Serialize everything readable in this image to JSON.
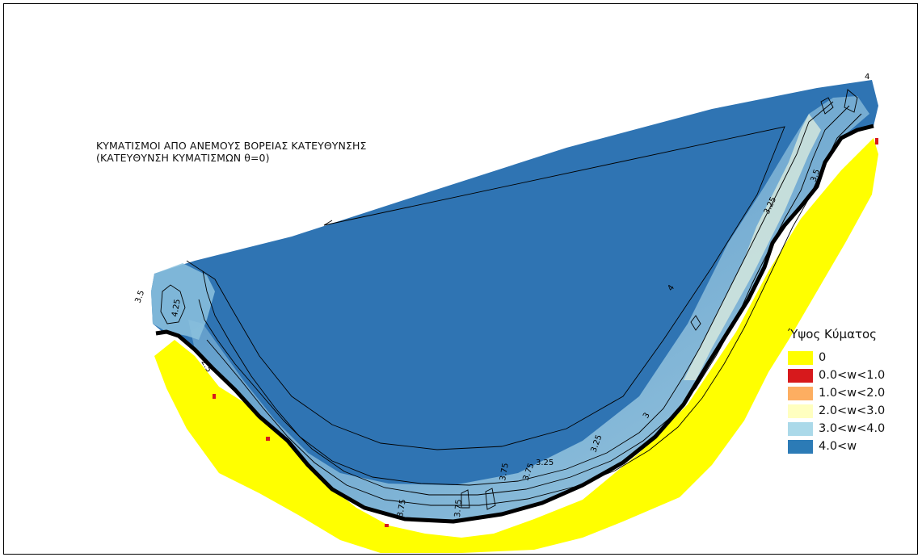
{
  "map": {
    "title_line1": "ΚΥΜΑΤΙΣΜΟΙ ΑΠΟ ΑΝΕΜΟΥΣ ΒΟΡΕΙΑΣ ΚΑΤΕΥΘΥΝΣΗΣ",
    "title_line2": "(ΚΑΤΕΥΘΥΝΣΗ ΚΥΜΑΤΙΣΜΩΝ θ=0)",
    "contour_labels": [
      "4",
      "3.5",
      "4.25",
      "2.5",
      "3.25",
      "3.5",
      "3",
      "3.75",
      "3.25",
      "3.75",
      "3.75",
      "3.75",
      "3.25",
      "4"
    ]
  },
  "legend": {
    "title": "Ύψος Κύματος",
    "items": [
      {
        "label": "0",
        "color": "#ffff00"
      },
      {
        "label": "0.0<w<1.0",
        "color": "#d7191c"
      },
      {
        "label": "1.0<w<2.0",
        "color": "#fdae61"
      },
      {
        "label": "2.0<w<3.0",
        "color": "#ffffc0"
      },
      {
        "label": "3.0<w<4.0",
        "color": "#abd9e9"
      },
      {
        "label": "4.0<w",
        "color": "#2c7bb6"
      }
    ]
  }
}
